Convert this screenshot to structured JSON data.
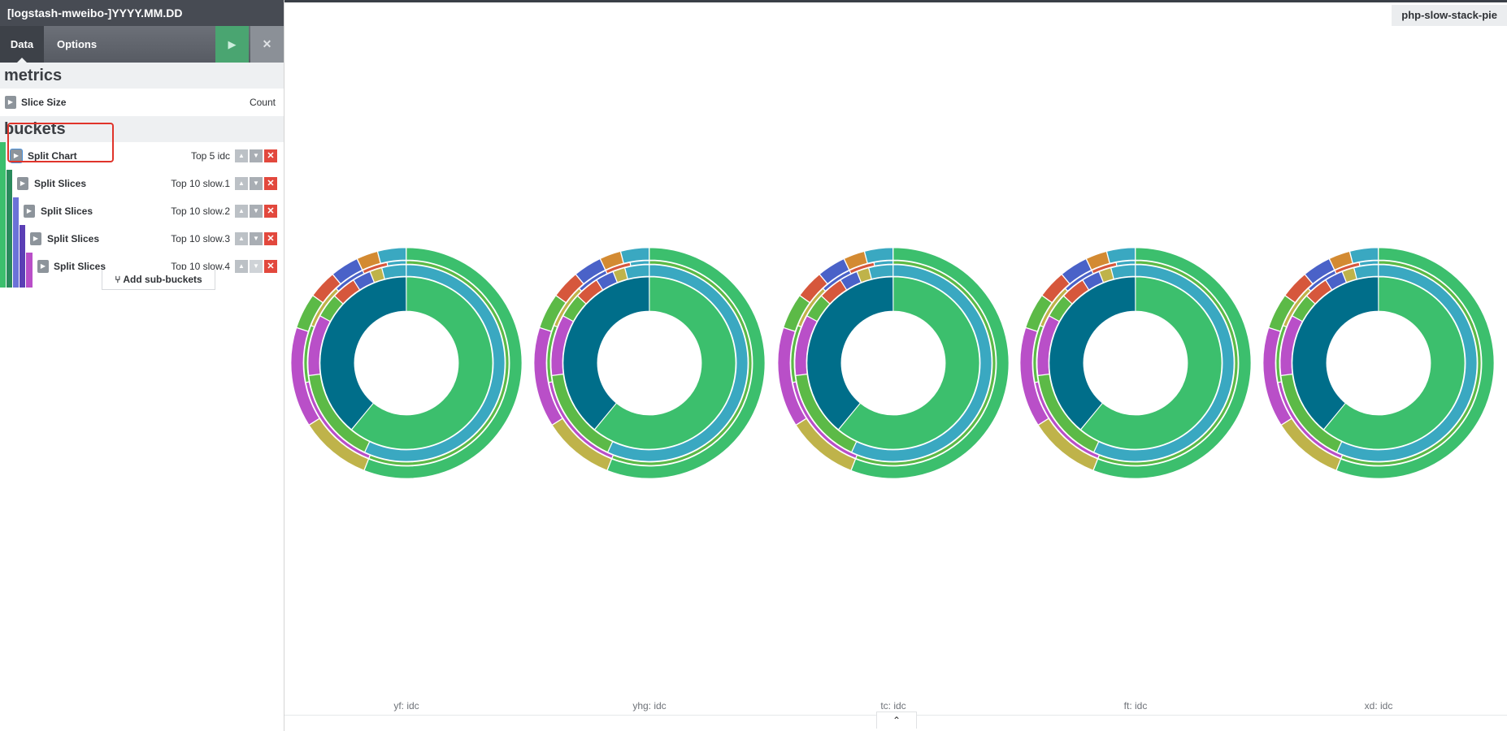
{
  "sidebar": {
    "index_pattern": "[logstash-mweibo-]YYYY.MM.DD",
    "tabs": [
      {
        "label": "Data",
        "active": true
      },
      {
        "label": "Options",
        "active": false
      }
    ],
    "apply_icon": "play-icon",
    "discard_icon": "close-icon",
    "metrics": {
      "heading": "metrics",
      "items": [
        {
          "label": "Slice Size",
          "value": "Count"
        }
      ]
    },
    "buckets": {
      "heading": "buckets",
      "items": [
        {
          "label": "Split Chart",
          "value": "Top 5 idc",
          "highlighted": true,
          "color": "#3cbf6d"
        },
        {
          "label": "Split Slices",
          "value": "Top 10 slow.1",
          "color": "#2a8a5c"
        },
        {
          "label": "Split Slices",
          "value": "Top 10 slow.2",
          "color": "#6b72d8"
        },
        {
          "label": "Split Slices",
          "value": "Top 10 slow.3",
          "color": "#5b3fb5"
        },
        {
          "label": "Split Slices",
          "value": "Top 10 slow.4",
          "color": "#b94fc8"
        }
      ],
      "add_sub_buckets": "Add sub-buckets",
      "add_sub_buckets_icon": "fork-icon"
    }
  },
  "visualization": {
    "title": "php-slow-stack-pie",
    "collapse_icon": "chevron-up-icon",
    "chart_data": {
      "type": "pie",
      "subtype": "multi-level donut (sunburst), one per idc",
      "ring_colors": [
        "#3cbf6d",
        "#3aa8c1",
        "#5cba47",
        "#006e8a",
        "#b94fc8",
        "#bfb34a",
        "#d6573c",
        "#4a62c8",
        "#d38a32"
      ],
      "charts": [
        {
          "label": "yf: idc"
        },
        {
          "label": "yhg: idc"
        },
        {
          "label": "tc: idc"
        },
        {
          "label": "ft: idc"
        },
        {
          "label": "xd: idc"
        }
      ]
    }
  }
}
